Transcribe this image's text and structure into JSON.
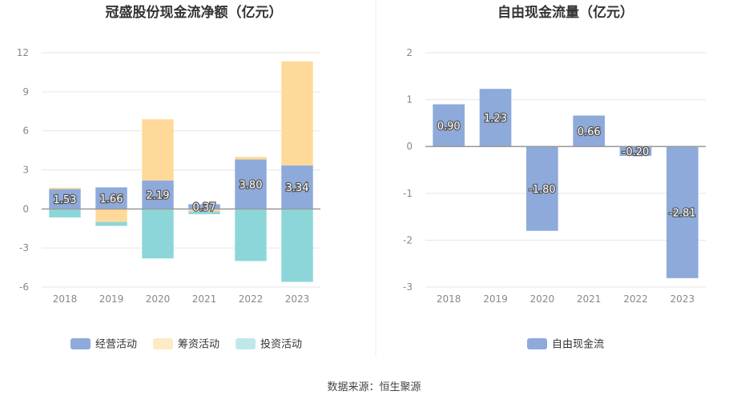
{
  "source": "数据来源：恒生聚源",
  "chart_data": [
    {
      "type": "bar",
      "stacked": true,
      "title": "冠盛股份现金流净额（亿元）",
      "categories": [
        "2018",
        "2019",
        "2020",
        "2021",
        "2022",
        "2023"
      ],
      "ylim": [
        -6,
        12
      ],
      "yticks": [
        -6,
        -3,
        0,
        3,
        6,
        9,
        12
      ],
      "grid": true,
      "legend_position": "bottom",
      "series": [
        {
          "name": "经营活动",
          "color": "#8eaadb",
          "values": [
            1.53,
            1.66,
            2.19,
            0.37,
            3.8,
            3.34
          ],
          "labels": [
            "1.53",
            "1.66",
            "2.19",
            "0.37",
            "3.80",
            "3.34"
          ]
        },
        {
          "name": "筹资活动",
          "color": "#ffd999",
          "values": [
            0.1,
            -1.0,
            4.7,
            -0.2,
            0.2,
            8.0
          ]
        },
        {
          "name": "投资活动",
          "color": "#8cd6d9",
          "values": [
            -0.65,
            -0.3,
            -3.8,
            -0.2,
            -4.0,
            -5.6
          ]
        }
      ]
    },
    {
      "type": "bar",
      "title": "自由现金流量（亿元）",
      "categories": [
        "2018",
        "2019",
        "2020",
        "2021",
        "2022",
        "2023"
      ],
      "ylim": [
        -3,
        2
      ],
      "yticks": [
        -3,
        -2,
        -1,
        0,
        1,
        2
      ],
      "grid": true,
      "legend_position": "bottom",
      "series": [
        {
          "name": "自由现金流",
          "color": "#8eaadb",
          "values": [
            0.9,
            1.23,
            -1.8,
            0.66,
            -0.2,
            -2.81
          ],
          "labels": [
            "0.90",
            "1.23",
            "-1.80",
            "0.66",
            "-0.20",
            "-2.81"
          ]
        }
      ]
    }
  ]
}
